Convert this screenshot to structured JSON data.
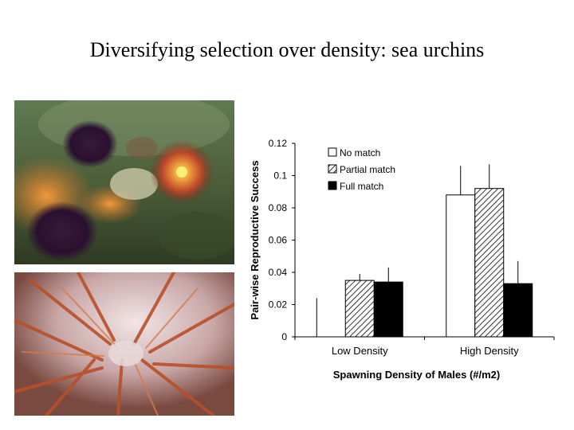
{
  "slide": {
    "title": "Diversifying selection over density: sea urchins"
  },
  "photos": {
    "top_icon": "underwater-sea-urchins-image",
    "bottom_icon": "sea-urchin-spines-closeup-image"
  },
  "chart_data": {
    "type": "bar",
    "categories": [
      "Low Density",
      "High Density"
    ],
    "series": [
      {
        "name": "No match",
        "values": [
          0.0,
          0.088
        ],
        "error": [
          0.024,
          0.018
        ],
        "color": "#ffffff",
        "pattern": "none"
      },
      {
        "name": "Partial match",
        "values": [
          0.035,
          0.092
        ],
        "error": [
          0.004,
          0.015
        ],
        "color": "#ffffff",
        "pattern": "hatched"
      },
      {
        "name": "Full match",
        "values": [
          0.034,
          0.033
        ],
        "error": [
          0.009,
          0.014
        ],
        "color": "#000000",
        "pattern": "solid"
      }
    ],
    "xlabel": "Spawning Density of Males (#/m2)",
    "ylabel": "Pair-wise Reproductive Success",
    "ylim": [
      0,
      0.12
    ],
    "yticks": [
      "0",
      "0.02",
      "0.04",
      "0.06",
      "0.08",
      "0.1",
      "0.12"
    ],
    "legend_position": "top-left",
    "grid": false
  }
}
